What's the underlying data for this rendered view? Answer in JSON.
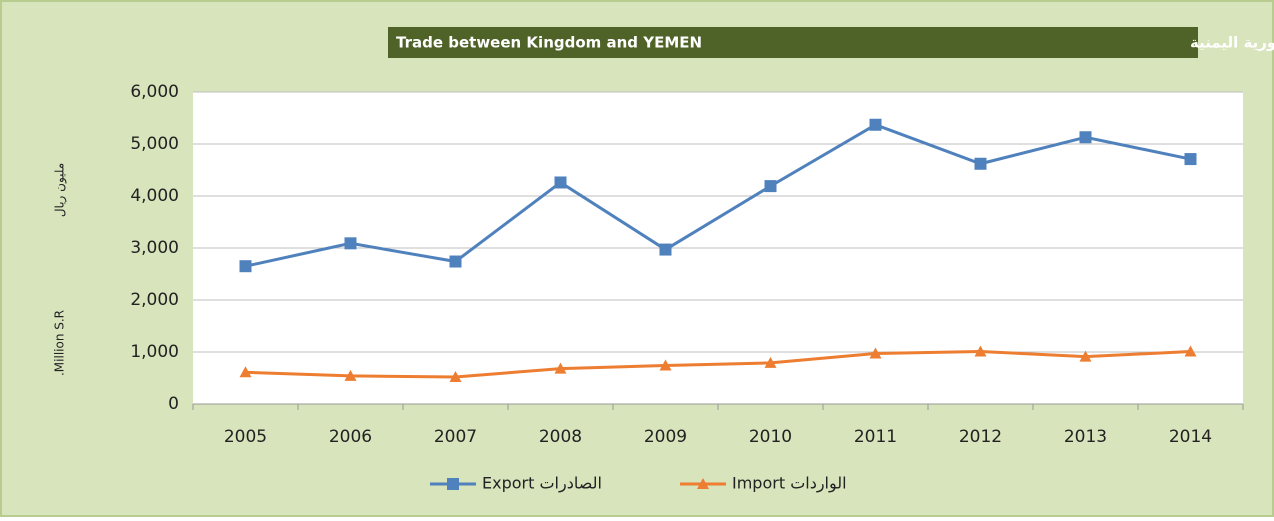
{
  "chart_data": {
    "type": "line",
    "title": "Trade between Kingdom and YEMEN",
    "title_ar": "التبادل التجاري بين المملكة و الجمهورية اليمنية",
    "ylabel": ".Million S.R",
    "ylabel_ar": "مليون ريال",
    "categories": [
      "2005",
      "2006",
      "2007",
      "2008",
      "2009",
      "2010",
      "2011",
      "2012",
      "2013",
      "2014"
    ],
    "series": [
      {
        "name": "Export الصادرات",
        "color": "#4f81bd",
        "marker": "square",
        "values": [
          2650,
          3090,
          2740,
          4260,
          2970,
          4190,
          5370,
          4620,
          5130,
          4710
        ]
      },
      {
        "name": "Import الواردات",
        "color": "#ed7d31",
        "marker": "triangle",
        "values": [
          610,
          540,
          520,
          680,
          740,
          790,
          970,
          1010,
          910,
          1010
        ]
      }
    ],
    "ylim": [
      0,
      6000
    ],
    "yticks": [
      0,
      {
        "value": 1000,
        "label": "1,000"
      },
      {
        "value": 2000,
        "label": "2,000"
      },
      {
        "value": 3000,
        "label": "3,000"
      },
      {
        "value": 4000,
        "label": "4,000"
      },
      {
        "value": 5000,
        "label": "5,000"
      },
      {
        "value": 6000,
        "label": "6,000"
      }
    ],
    "grid": true,
    "legend": "bottom"
  }
}
